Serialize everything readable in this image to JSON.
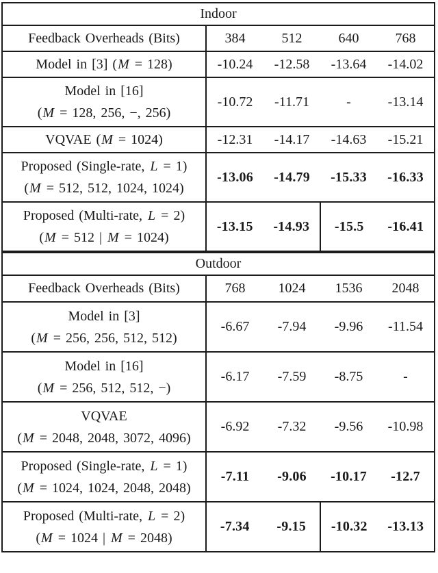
{
  "figure": {
    "kind": "results-table"
  },
  "colors": {
    "background": "#ffffff",
    "border": "#1b1b1b",
    "text": "#1a1a1a"
  },
  "tables": [
    {
      "title": "Indoor",
      "header": {
        "label": "Feedback Overheads (Bits)",
        "columns": [
          "384",
          "512",
          "640",
          "768"
        ]
      },
      "rows": [
        {
          "label_lines": [
            "Model in [3] (M = 128)"
          ],
          "values": [
            "-10.24",
            "-12.58",
            "-13.64",
            "-14.02"
          ],
          "bold": false,
          "split": false
        },
        {
          "label_lines": [
            "Model in [16]",
            "(M = 128, 256, −, 256)"
          ],
          "values": [
            "-10.72",
            "-11.71",
            "-",
            "-13.14"
          ],
          "bold": false,
          "split": false
        },
        {
          "label_lines": [
            "VQVAE (M = 1024)"
          ],
          "values": [
            "-12.31",
            "-14.17",
            "-14.63",
            "-15.21"
          ],
          "bold": false,
          "split": false
        },
        {
          "label_lines": [
            "Proposed (Single-rate, L = 1)",
            "(M = 512, 512, 1024, 1024)"
          ],
          "values": [
            "-13.06",
            "-14.79",
            "-15.33",
            "-16.33"
          ],
          "bold": true,
          "split": false
        },
        {
          "label_lines": [
            "Proposed (Multi-rate, L = 2)",
            "(M = 512 | M = 1024)"
          ],
          "values": [
            "-13.15",
            "-14.93",
            "-15.5",
            "-16.41"
          ],
          "bold": true,
          "split": true
        }
      ]
    },
    {
      "title": "Outdoor",
      "header": {
        "label": "Feedback Overheads (Bits)",
        "columns": [
          "768",
          "1024",
          "1536",
          "2048"
        ]
      },
      "rows": [
        {
          "label_lines": [
            "Model in [3]",
            "(M = 256, 256, 512, 512)"
          ],
          "values": [
            "-6.67",
            "-7.94",
            "-9.96",
            "-11.54"
          ],
          "bold": false,
          "split": false
        },
        {
          "label_lines": [
            "Model in [16]",
            "(M = 256, 512, 512, −)"
          ],
          "values": [
            "-6.17",
            "-7.59",
            "-8.75",
            "-"
          ],
          "bold": false,
          "split": false
        },
        {
          "label_lines": [
            "VQVAE",
            "(M = 2048, 2048, 3072, 4096)"
          ],
          "values": [
            "-6.92",
            "-7.32",
            "-9.56",
            "-10.98"
          ],
          "bold": false,
          "split": false
        },
        {
          "label_lines": [
            "Proposed (Single-rate, L = 1)",
            "(M = 1024, 1024, 2048, 2048)"
          ],
          "values": [
            "-7.11",
            "-9.06",
            "-10.17",
            "-12.7"
          ],
          "bold": true,
          "split": false
        },
        {
          "label_lines": [
            "Proposed (Multi-rate, L = 2)",
            "(M = 1024 | M = 2048)"
          ],
          "values": [
            "-7.34",
            "-9.15",
            "-10.32",
            "-13.13"
          ],
          "bold": true,
          "split": true
        }
      ]
    }
  ]
}
